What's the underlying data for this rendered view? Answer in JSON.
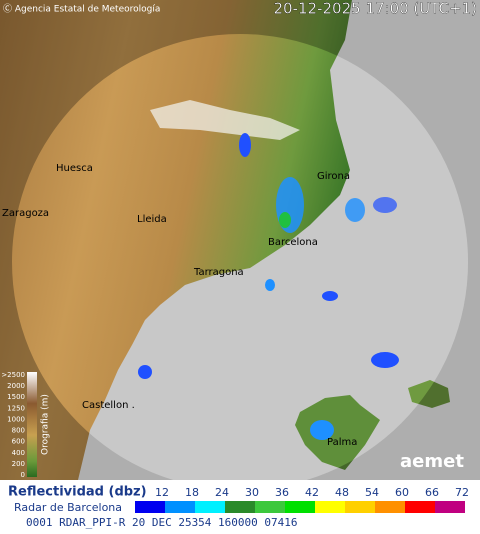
{
  "header": {
    "credit": "Ⓒ Agencia Estatal de Meteorología",
    "timestamp": "20-12-2025 17:00 (UTC+1)"
  },
  "places": [
    {
      "label": "Huesca"
    },
    {
      "label": "Girona"
    },
    {
      "label": "Lleida"
    },
    {
      "label": "Zaragoza"
    },
    {
      "label": "Barcelona"
    },
    {
      "label": "Tarragona"
    },
    {
      "label": "Castellon ."
    },
    {
      "label": "Palma"
    }
  ],
  "orography": {
    "title": "Orografia (m)",
    "levels": [
      ">2500",
      "2000",
      "1500",
      "1250",
      "1000",
      "800",
      "600",
      "400",
      "200",
      "0"
    ]
  },
  "brand": "aemet",
  "legend": {
    "title": "Reflectividad (dbz)",
    "radar": "Radar de Barcelona",
    "levels": [
      "12",
      "18",
      "24",
      "30",
      "36",
      "42",
      "48",
      "54",
      "60",
      "66",
      "72"
    ]
  },
  "footer": "0001 RDAR_PPI-R   20 DEC 25354 160000 07416"
}
